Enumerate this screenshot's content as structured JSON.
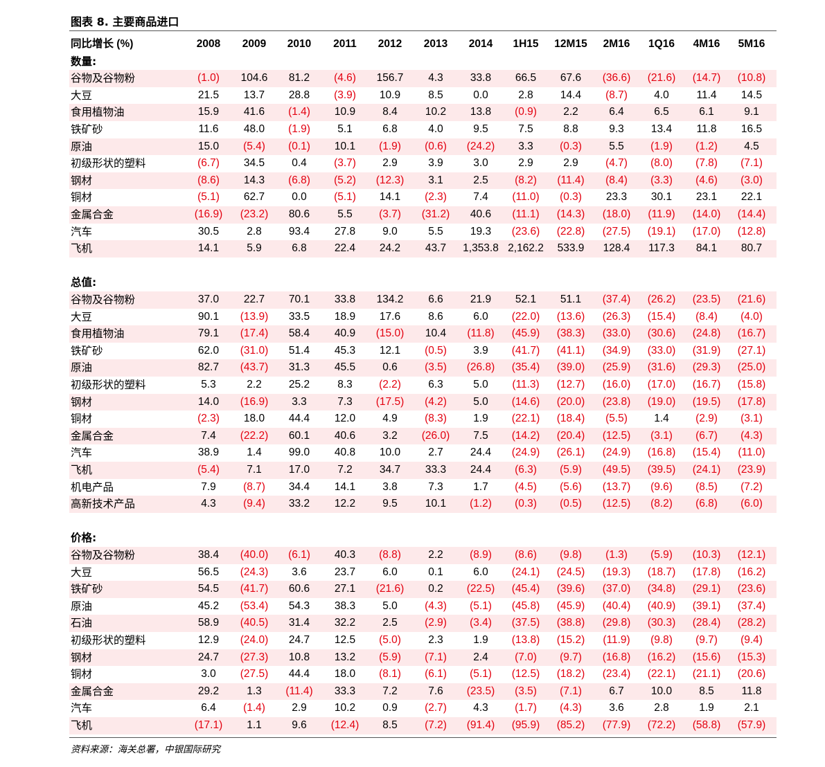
{
  "title": "图表 8. 主要商品进口",
  "source": "资料来源：海关总署，中银国际研究",
  "colors": {
    "negative": "#e3000f",
    "shade": "#fde9ea"
  },
  "header": {
    "label": "同比增长 (%)",
    "columns": [
      "2008",
      "2009",
      "2010",
      "2011",
      "2012",
      "2013",
      "2014",
      "1H15",
      "12M15",
      "2M16",
      "1Q16",
      "4M16",
      "5M16"
    ]
  },
  "sections": [
    {
      "name": "数量:",
      "rows": [
        {
          "label": "谷物及谷物粉",
          "values": [
            "(1.0)",
            "104.6",
            "81.2",
            "(4.6)",
            "156.7",
            "4.3",
            "33.8",
            "66.5",
            "67.6",
            "(36.6)",
            "(21.6)",
            "(14.7)",
            "(10.8)"
          ]
        },
        {
          "label": "大豆",
          "values": [
            "21.5",
            "13.7",
            "28.8",
            "(3.9)",
            "10.9",
            "8.5",
            "0.0",
            "2.8",
            "14.4",
            "(8.7)",
            "4.0",
            "11.4",
            "14.5"
          ]
        },
        {
          "label": "食用植物油",
          "values": [
            "15.9",
            "41.6",
            "(1.4)",
            "10.9",
            "8.4",
            "10.2",
            "13.8",
            "(0.9)",
            "2.2",
            "6.4",
            "6.5",
            "6.1",
            "9.1"
          ]
        },
        {
          "label": "铁矿砂",
          "values": [
            "11.6",
            "48.0",
            "(1.9)",
            "5.1",
            "6.8",
            "4.0",
            "9.5",
            "7.5",
            "8.8",
            "9.3",
            "13.4",
            "11.8",
            "16.5"
          ]
        },
        {
          "label": "原油",
          "values": [
            "15.0",
            "(5.4)",
            "(0.1)",
            "10.1",
            "(1.9)",
            "(0.6)",
            "(24.2)",
            "3.3",
            "(0.3)",
            "5.5",
            "(1.9)",
            "(1.2)",
            "4.5"
          ]
        },
        {
          "label": "初级形状的塑料",
          "values": [
            "(6.7)",
            "34.5",
            "0.4",
            "(3.7)",
            "2.9",
            "3.9",
            "3.0",
            "2.9",
            "2.9",
            "(4.7)",
            "(8.0)",
            "(7.8)",
            "(7.1)"
          ]
        },
        {
          "label": "钢材",
          "values": [
            "(8.6)",
            "14.3",
            "(6.8)",
            "(5.2)",
            "(12.3)",
            "3.1",
            "2.5",
            "(8.2)",
            "(11.4)",
            "(8.4)",
            "(3.3)",
            "(4.6)",
            "(3.0)"
          ]
        },
        {
          "label": "铜材",
          "values": [
            "(5.1)",
            "62.7",
            "0.0",
            "(5.1)",
            "14.1",
            "(2.3)",
            "7.4",
            "(11.0)",
            "(0.3)",
            "23.3",
            "30.1",
            "23.1",
            "22.1"
          ]
        },
        {
          "label": "金属合金",
          "values": [
            "(16.9)",
            "(23.2)",
            "80.6",
            "5.5",
            "(3.7)",
            "(31.2)",
            "40.6",
            "(11.1)",
            "(14.3)",
            "(18.0)",
            "(11.9)",
            "(14.0)",
            "(14.4)"
          ]
        },
        {
          "label": "汽车",
          "values": [
            "30.5",
            "2.8",
            "93.4",
            "27.8",
            "9.0",
            "5.5",
            "19.3",
            "(23.6)",
            "(22.8)",
            "(27.5)",
            "(19.1)",
            "(17.0)",
            "(12.8)"
          ]
        },
        {
          "label": "飞机",
          "values": [
            "14.1",
            "5.9",
            "6.8",
            "22.4",
            "24.2",
            "43.7",
            "1,353.8",
            "2,162.2",
            "533.9",
            "128.4",
            "117.3",
            "84.1",
            "80.7"
          ]
        }
      ]
    },
    {
      "name": "总值:",
      "rows": [
        {
          "label": "谷物及谷物粉",
          "values": [
            "37.0",
            "22.7",
            "70.1",
            "33.8",
            "134.2",
            "6.6",
            "21.9",
            "52.1",
            "51.1",
            "(37.4)",
            "(26.2)",
            "(23.5)",
            "(21.6)"
          ]
        },
        {
          "label": "大豆",
          "values": [
            "90.1",
            "(13.9)",
            "33.5",
            "18.9",
            "17.6",
            "8.6",
            "6.0",
            "(22.0)",
            "(13.6)",
            "(26.3)",
            "(15.4)",
            "(8.4)",
            "(4.0)"
          ]
        },
        {
          "label": "食用植物油",
          "values": [
            "79.1",
            "(17.4)",
            "58.4",
            "40.9",
            "(15.0)",
            "10.4",
            "(11.8)",
            "(45.9)",
            "(38.3)",
            "(33.0)",
            "(30.6)",
            "(24.8)",
            "(16.7)"
          ]
        },
        {
          "label": "铁矿砂",
          "values": [
            "62.0",
            "(31.0)",
            "51.4",
            "45.3",
            "12.1",
            "(0.5)",
            "3.9",
            "(41.7)",
            "(41.1)",
            "(34.9)",
            "(33.0)",
            "(31.9)",
            "(27.1)"
          ]
        },
        {
          "label": "原油",
          "values": [
            "82.7",
            "(43.7)",
            "31.3",
            "45.5",
            "0.6",
            "(3.5)",
            "(26.8)",
            "(35.4)",
            "(39.0)",
            "(25.9)",
            "(31.6)",
            "(29.3)",
            "(25.0)"
          ]
        },
        {
          "label": "初级形状的塑料",
          "values": [
            "5.3",
            "2.2",
            "25.2",
            "8.3",
            "(2.2)",
            "6.3",
            "5.0",
            "(11.3)",
            "(12.7)",
            "(16.0)",
            "(17.0)",
            "(16.7)",
            "(15.8)"
          ]
        },
        {
          "label": "钢材",
          "values": [
            "14.0",
            "(16.9)",
            "3.3",
            "7.3",
            "(17.5)",
            "(4.2)",
            "5.0",
            "(14.6)",
            "(20.0)",
            "(23.8)",
            "(19.0)",
            "(19.5)",
            "(17.8)"
          ]
        },
        {
          "label": "铜材",
          "values": [
            "(2.3)",
            "18.0",
            "44.4",
            "12.0",
            "4.9",
            "(8.3)",
            "1.9",
            "(22.1)",
            "(18.4)",
            "(5.5)",
            "1.4",
            "(2.9)",
            "(3.1)"
          ]
        },
        {
          "label": "金属合金",
          "values": [
            "7.4",
            "(22.2)",
            "60.1",
            "40.6",
            "3.2",
            "(26.0)",
            "7.5",
            "(14.2)",
            "(20.4)",
            "(12.5)",
            "(3.1)",
            "(6.7)",
            "(4.3)"
          ]
        },
        {
          "label": "汽车",
          "values": [
            "38.9",
            "1.4",
            "99.0",
            "40.8",
            "10.0",
            "2.7",
            "24.4",
            "(24.9)",
            "(26.1)",
            "(24.9)",
            "(16.8)",
            "(15.4)",
            "(11.0)"
          ]
        },
        {
          "label": "飞机",
          "values": [
            "(5.4)",
            "7.1",
            "17.0",
            "7.2",
            "34.7",
            "33.3",
            "24.4",
            "(6.3)",
            "(5.9)",
            "(49.5)",
            "(39.5)",
            "(24.1)",
            "(23.9)"
          ]
        },
        {
          "label": "机电产品",
          "values": [
            "7.9",
            "(8.7)",
            "34.4",
            "14.1",
            "3.8",
            "7.3",
            "1.7",
            "(4.5)",
            "(5.6)",
            "(13.7)",
            "(9.6)",
            "(8.5)",
            "(7.2)"
          ]
        },
        {
          "label": "高新技术产品",
          "values": [
            "4.3",
            "(9.4)",
            "33.2",
            "12.2",
            "9.5",
            "10.1",
            "(1.2)",
            "(0.3)",
            "(0.5)",
            "(12.5)",
            "(8.2)",
            "(6.8)",
            "(6.0)"
          ]
        }
      ]
    },
    {
      "name": "价格:",
      "rows": [
        {
          "label": "谷物及谷物粉",
          "values": [
            "38.4",
            "(40.0)",
            "(6.1)",
            "40.3",
            "(8.8)",
            "2.2",
            "(8.9)",
            "(8.6)",
            "(9.8)",
            "(1.3)",
            "(5.9)",
            "(10.3)",
            "(12.1)"
          ]
        },
        {
          "label": "大豆",
          "values": [
            "56.5",
            "(24.3)",
            "3.6",
            "23.7",
            "6.0",
            "0.1",
            "6.0",
            "(24.1)",
            "(24.5)",
            "(19.3)",
            "(18.7)",
            "(17.8)",
            "(16.2)"
          ]
        },
        {
          "label": "铁矿砂",
          "values": [
            "54.5",
            "(41.7)",
            "60.6",
            "27.1",
            "(21.6)",
            "0.2",
            "(22.5)",
            "(45.4)",
            "(39.6)",
            "(37.0)",
            "(34.8)",
            "(29.1)",
            "(23.6)"
          ]
        },
        {
          "label": "原油",
          "values": [
            "45.2",
            "(53.4)",
            "54.3",
            "38.3",
            "5.0",
            "(4.3)",
            "(5.1)",
            "(45.8)",
            "(45.9)",
            "(40.4)",
            "(40.9)",
            "(39.1)",
            "(37.4)"
          ]
        },
        {
          "label": "石油",
          "values": [
            "58.9",
            "(40.5)",
            "31.4",
            "32.2",
            "2.5",
            "(2.9)",
            "(3.4)",
            "(37.5)",
            "(38.8)",
            "(29.8)",
            "(30.3)",
            "(28.4)",
            "(28.2)"
          ]
        },
        {
          "label": "初级形状的塑料",
          "values": [
            "12.9",
            "(24.0)",
            "24.7",
            "12.5",
            "(5.0)",
            "2.3",
            "1.9",
            "(13.8)",
            "(15.2)",
            "(11.9)",
            "(9.8)",
            "(9.7)",
            "(9.4)"
          ]
        },
        {
          "label": "钢材",
          "values": [
            "24.7",
            "(27.3)",
            "10.8",
            "13.2",
            "(5.9)",
            "(7.1)",
            "2.4",
            "(7.0)",
            "(9.7)",
            "(16.8)",
            "(16.2)",
            "(15.6)",
            "(15.3)"
          ]
        },
        {
          "label": "铜材",
          "values": [
            "3.0",
            "(27.5)",
            "44.4",
            "18.0",
            "(8.1)",
            "(6.1)",
            "(5.1)",
            "(12.5)",
            "(18.2)",
            "(23.4)",
            "(22.1)",
            "(21.1)",
            "(20.6)"
          ]
        },
        {
          "label": "金属合金",
          "values": [
            "29.2",
            "1.3",
            "(11.4)",
            "33.3",
            "7.2",
            "7.6",
            "(23.5)",
            "(3.5)",
            "(7.1)",
            "6.7",
            "10.0",
            "8.5",
            "11.8"
          ]
        },
        {
          "label": "汽车",
          "values": [
            "6.4",
            "(1.4)",
            "2.9",
            "10.2",
            "0.9",
            "(2.7)",
            "4.3",
            "(1.7)",
            "(4.3)",
            "3.6",
            "2.8",
            "1.9",
            "2.1"
          ]
        },
        {
          "label": "飞机",
          "values": [
            "(17.1)",
            "1.1",
            "9.6",
            "(12.4)",
            "8.5",
            "(7.2)",
            "(91.4)",
            "(95.9)",
            "(85.2)",
            "(77.9)",
            "(72.2)",
            "(58.8)",
            "(57.9)"
          ]
        }
      ]
    }
  ]
}
